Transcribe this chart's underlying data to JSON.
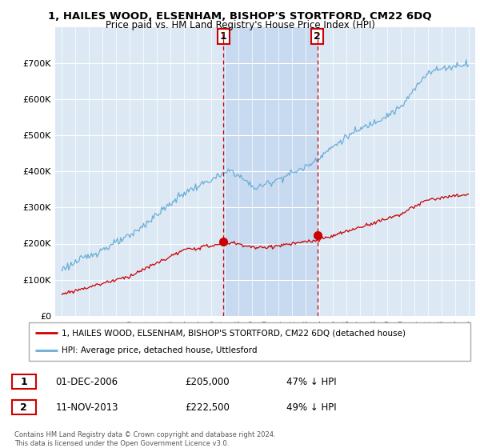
{
  "title": "1, HAILES WOOD, ELSENHAM, BISHOP'S STORTFORD, CM22 6DQ",
  "subtitle": "Price paid vs. HM Land Registry's House Price Index (HPI)",
  "legend_line1": "1, HAILES WOOD, ELSENHAM, BISHOP'S STORTFORD, CM22 6DQ (detached house)",
  "legend_line2": "HPI: Average price, detached house, Uttlesford",
  "footnote": "Contains HM Land Registry data © Crown copyright and database right 2024.\nThis data is licensed under the Open Government Licence v3.0.",
  "transaction1_date": "01-DEC-2006",
  "transaction1_price": "£205,000",
  "transaction1_hpi": "47% ↓ HPI",
  "transaction2_date": "11-NOV-2013",
  "transaction2_price": "£222,500",
  "transaction2_hpi": "49% ↓ HPI",
  "ylim": [
    0,
    800000
  ],
  "yticks": [
    0,
    100000,
    200000,
    300000,
    400000,
    500000,
    600000,
    700000
  ],
  "ytick_labels": [
    "£0",
    "£100K",
    "£200K",
    "£300K",
    "£400K",
    "£500K",
    "£600K",
    "£700K"
  ],
  "hpi_color": "#6baed6",
  "price_color": "#cc0000",
  "plot_bg_color": "#dce9f5",
  "shade_color": "#c6d9f0",
  "transaction1_x": 2006.917,
  "transaction2_x": 2013.86,
  "transaction1_y": 205000,
  "transaction2_y": 222500,
  "vline_color": "#cc0000",
  "grid_color": "#ffffff",
  "xlim_min": 1994.5,
  "xlim_max": 2025.5
}
